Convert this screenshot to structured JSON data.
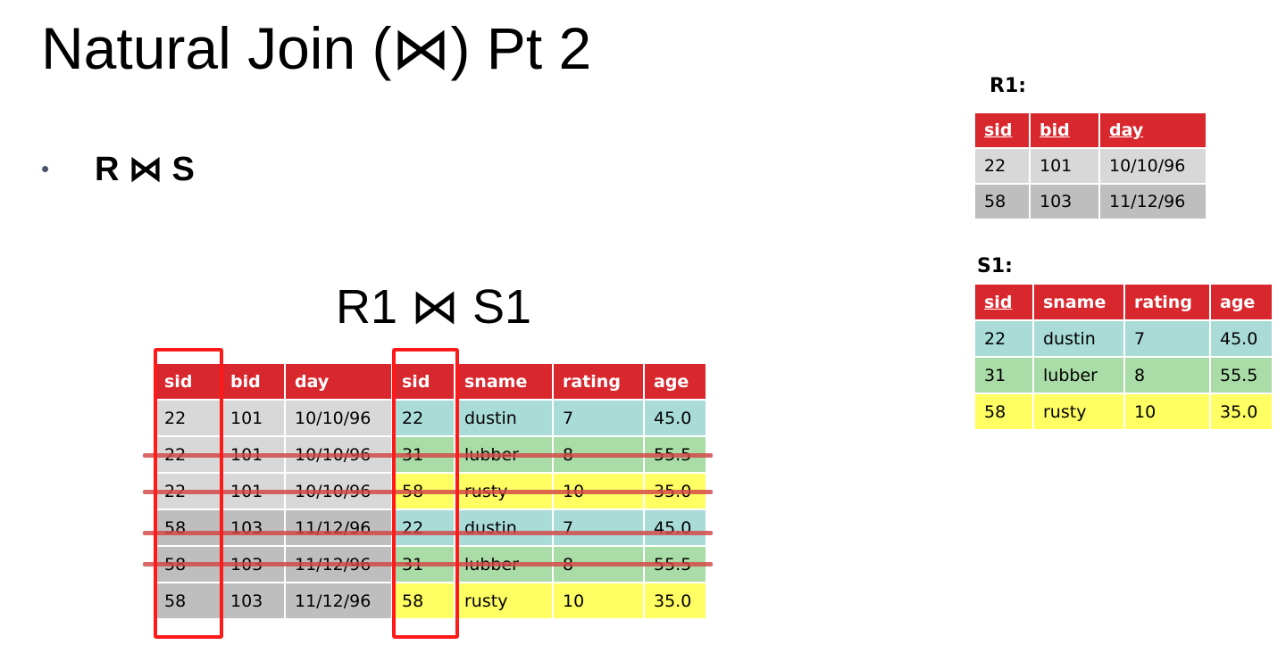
{
  "slide": {
    "title": "Natural Join (⋈) Pt 2",
    "bullet": {
      "symbol": "•",
      "text": "R ⋈ S"
    },
    "join_title": "R1 ⋈ S1"
  },
  "r1": {
    "label": "R1:",
    "headers": [
      "sid",
      "bid",
      "day"
    ],
    "key_columns": [
      "sid",
      "bid",
      "day"
    ],
    "rows": [
      [
        "22",
        "101",
        "10/10/96"
      ],
      [
        "58",
        "103",
        "11/12/96"
      ]
    ]
  },
  "s1": {
    "label": "S1:",
    "headers": [
      "sid",
      "sname",
      "rating",
      "age"
    ],
    "key_columns": [
      "sid"
    ],
    "rows": [
      [
        "22",
        "dustin",
        "7",
        "45.0"
      ],
      [
        "31",
        "lubber",
        "8",
        "55.5"
      ],
      [
        "58",
        "rusty",
        "10",
        "35.0"
      ]
    ]
  },
  "join": {
    "headers": [
      "sid",
      "bid",
      "day",
      "sid",
      "sname",
      "rating",
      "age"
    ],
    "rows": [
      [
        "22",
        "101",
        "10/10/96",
        "22",
        "dustin",
        "7",
        "45.0"
      ],
      [
        "22",
        "101",
        "10/10/96",
        "31",
        "lubber",
        "8",
        "55.5"
      ],
      [
        "22",
        "101",
        "10/10/96",
        "58",
        "rusty",
        "10",
        "35.0"
      ],
      [
        "58",
        "103",
        "11/12/96",
        "22",
        "dustin",
        "7",
        "45.0"
      ],
      [
        "58",
        "103",
        "11/12/96",
        "31",
        "lubber",
        "8",
        "55.5"
      ],
      [
        "58",
        "103",
        "11/12/96",
        "58",
        "rusty",
        "10",
        "35.0"
      ]
    ],
    "struck_rows": [
      1,
      2,
      3,
      4
    ],
    "highlighted_columns": [
      0,
      3
    ]
  },
  "colors": {
    "header_red": "#d9272e",
    "light_gray": "#d8d8d8",
    "dark_gray": "#bebebe",
    "teal": "#a9dbd7",
    "green": "#a9dca6",
    "yellow": "#fffe63",
    "highlight_box": "#ff1a1a",
    "strike_line": "#d24646"
  }
}
